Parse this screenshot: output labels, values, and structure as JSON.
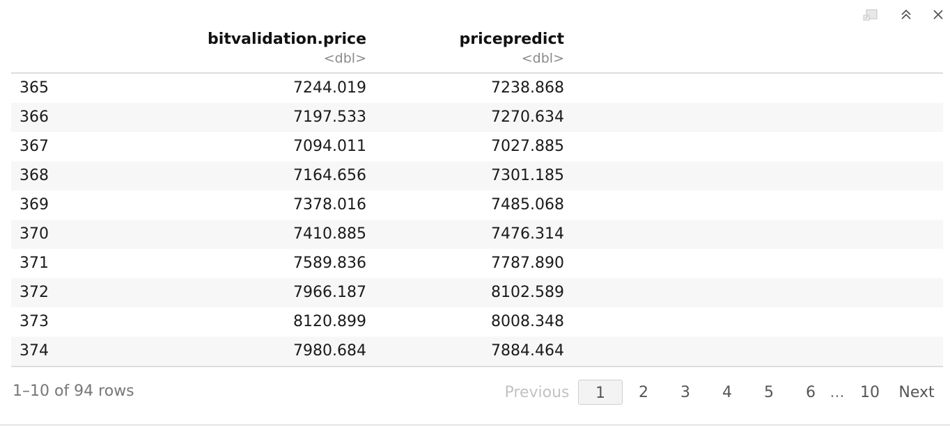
{
  "toolbar": {
    "icons": [
      "export-icon",
      "collapse-icon",
      "close-icon"
    ]
  },
  "table": {
    "columns": [
      {
        "name": "bitvalidation.price",
        "type": "<dbl>"
      },
      {
        "name": "pricepredict",
        "type": "<dbl>"
      }
    ],
    "rows": [
      {
        "idx": "365",
        "c1": "7244.019",
        "c2": "7238.868"
      },
      {
        "idx": "366",
        "c1": "7197.533",
        "c2": "7270.634"
      },
      {
        "idx": "367",
        "c1": "7094.011",
        "c2": "7027.885"
      },
      {
        "idx": "368",
        "c1": "7164.656",
        "c2": "7301.185"
      },
      {
        "idx": "369",
        "c1": "7378.016",
        "c2": "7485.068"
      },
      {
        "idx": "370",
        "c1": "7410.885",
        "c2": "7476.314"
      },
      {
        "idx": "371",
        "c1": "7589.836",
        "c2": "7787.890"
      },
      {
        "idx": "372",
        "c1": "7966.187",
        "c2": "8102.589"
      },
      {
        "idx": "373",
        "c1": "8120.899",
        "c2": "8008.348"
      },
      {
        "idx": "374",
        "c1": "7980.684",
        "c2": "7884.464"
      }
    ]
  },
  "footer": {
    "row_info": "1–10 of 94 rows",
    "previous": "Previous",
    "pages": [
      "1",
      "2",
      "3",
      "4",
      "5",
      "6"
    ],
    "ellipsis": "...",
    "last_page": "10",
    "next": "Next",
    "current_page": "1"
  }
}
